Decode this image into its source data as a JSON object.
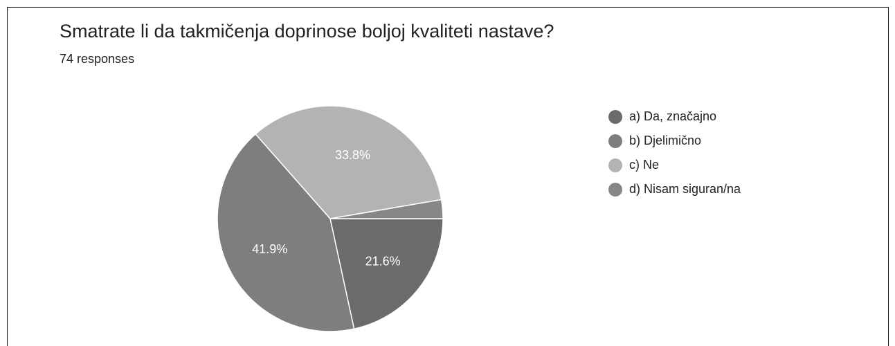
{
  "header": {
    "title": "Smatrate li da takmičenja doprinose boljoj kvaliteti nastave?",
    "responses_label": "74 responses"
  },
  "chart_data": {
    "type": "pie",
    "title": "Smatrate li da takmičenja doprinose boljoj kvaliteti nastave?",
    "total_responses": 74,
    "legend_position": "right",
    "start_direction": "clockwise from 3 o'clock",
    "slices": [
      {
        "label": "a) Da, značajno",
        "value": 21.6,
        "display": "21.6%",
        "color": "#6b6b6b"
      },
      {
        "label": "b) Djelimično",
        "value": 41.9,
        "display": "41.9%",
        "color": "#7e7e7e"
      },
      {
        "label": "c) Ne",
        "value": 33.8,
        "display": "33.8%",
        "color": "#b3b3b3"
      },
      {
        "label": "d) Nisam siguran/na",
        "value": 2.7,
        "display": "",
        "color": "#878787"
      }
    ]
  }
}
